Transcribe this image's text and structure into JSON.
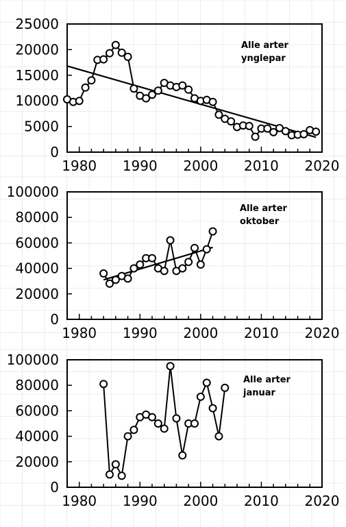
{
  "chart_data": [
    {
      "type": "line",
      "annotation": [
        "Alle arter",
        "ynglepar"
      ],
      "xlim": [
        1978,
        2020
      ],
      "ylim": [
        0,
        25000
      ],
      "xticks": [
        "1980",
        "1990",
        "2000",
        "2010",
        "2020"
      ],
      "yticks": [
        "0",
        "5000",
        "10000",
        "15000",
        "20000",
        "25000"
      ],
      "grid": false,
      "series": [
        {
          "x": [
            1978,
            1979,
            1980,
            1981,
            1982,
            1983,
            1984,
            1985,
            1986,
            1987,
            1988,
            1989,
            1990,
            1991,
            1992,
            1993,
            1994,
            1995,
            1996,
            1997,
            1998,
            1999,
            2000,
            2001,
            2002,
            2003,
            2004,
            2005,
            2006,
            2007,
            2008,
            2009,
            2010,
            2011,
            2012,
            2013,
            2014,
            2015,
            2016,
            2017,
            2018,
            2019
          ],
          "y": [
            10300,
            9800,
            10000,
            12600,
            14000,
            18000,
            18100,
            19300,
            20900,
            19400,
            18600,
            12400,
            11000,
            10500,
            11200,
            12000,
            13500,
            13000,
            12700,
            13000,
            12200,
            10500,
            10000,
            10200,
            9800,
            7300,
            6500,
            6000,
            4900,
            5200,
            5100,
            3000,
            4600,
            4600,
            3900,
            4700,
            4100,
            3300,
            3400,
            3500,
            4300,
            4000
          ]
        }
      ],
      "trend": {
        "x": [
          1978,
          2019
        ],
        "y": [
          16800,
          2900
        ]
      }
    },
    {
      "type": "line",
      "annotation": [
        "Alle arter",
        "oktober"
      ],
      "xlim": [
        1978,
        2020
      ],
      "ylim": [
        0,
        100000
      ],
      "xticks": [
        "1980",
        "1990",
        "2000",
        "2010",
        "2020"
      ],
      "yticks": [
        "0",
        "20000",
        "40000",
        "60000",
        "80000",
        "100000"
      ],
      "grid": false,
      "series": [
        {
          "x": [
            1984,
            1985,
            1986,
            1987,
            1988,
            1989,
            1990,
            1991,
            1992,
            1993,
            1994,
            1995,
            1996,
            1997,
            1998,
            1999,
            2000,
            2001,
            2002
          ],
          "y": [
            36000,
            28000,
            31000,
            34000,
            32000,
            40000,
            43000,
            48000,
            48000,
            40000,
            38000,
            62000,
            38000,
            40000,
            45000,
            56000,
            43000,
            55000,
            69000
          ]
        }
      ],
      "trend": {
        "x": [
          1984,
          2002
        ],
        "y": [
          31000,
          56500
        ]
      }
    },
    {
      "type": "line",
      "annotation": [
        "Alle arter",
        "januar"
      ],
      "xlim": [
        1978,
        2020
      ],
      "ylim": [
        0,
        100000
      ],
      "xticks": [
        "1980",
        "1990",
        "2000",
        "2010",
        "2020"
      ],
      "yticks": [
        "0",
        "20000",
        "40000",
        "60000",
        "80000",
        "100000"
      ],
      "grid": false,
      "series": [
        {
          "x": [
            1984,
            1985,
            1986,
            1987,
            1988,
            1989,
            1990,
            1991,
            1992,
            1993,
            1994,
            1995,
            1996,
            1997,
            1998,
            1999,
            2000,
            2001,
            2002,
            2003,
            2004
          ],
          "y": [
            81000,
            10000,
            18000,
            9000,
            40000,
            45000,
            55000,
            57000,
            55000,
            50000,
            46000,
            95000,
            54000,
            25000,
            50000,
            50000,
            71000,
            82000,
            62000,
            40000,
            78000
          ]
        }
      ]
    }
  ]
}
